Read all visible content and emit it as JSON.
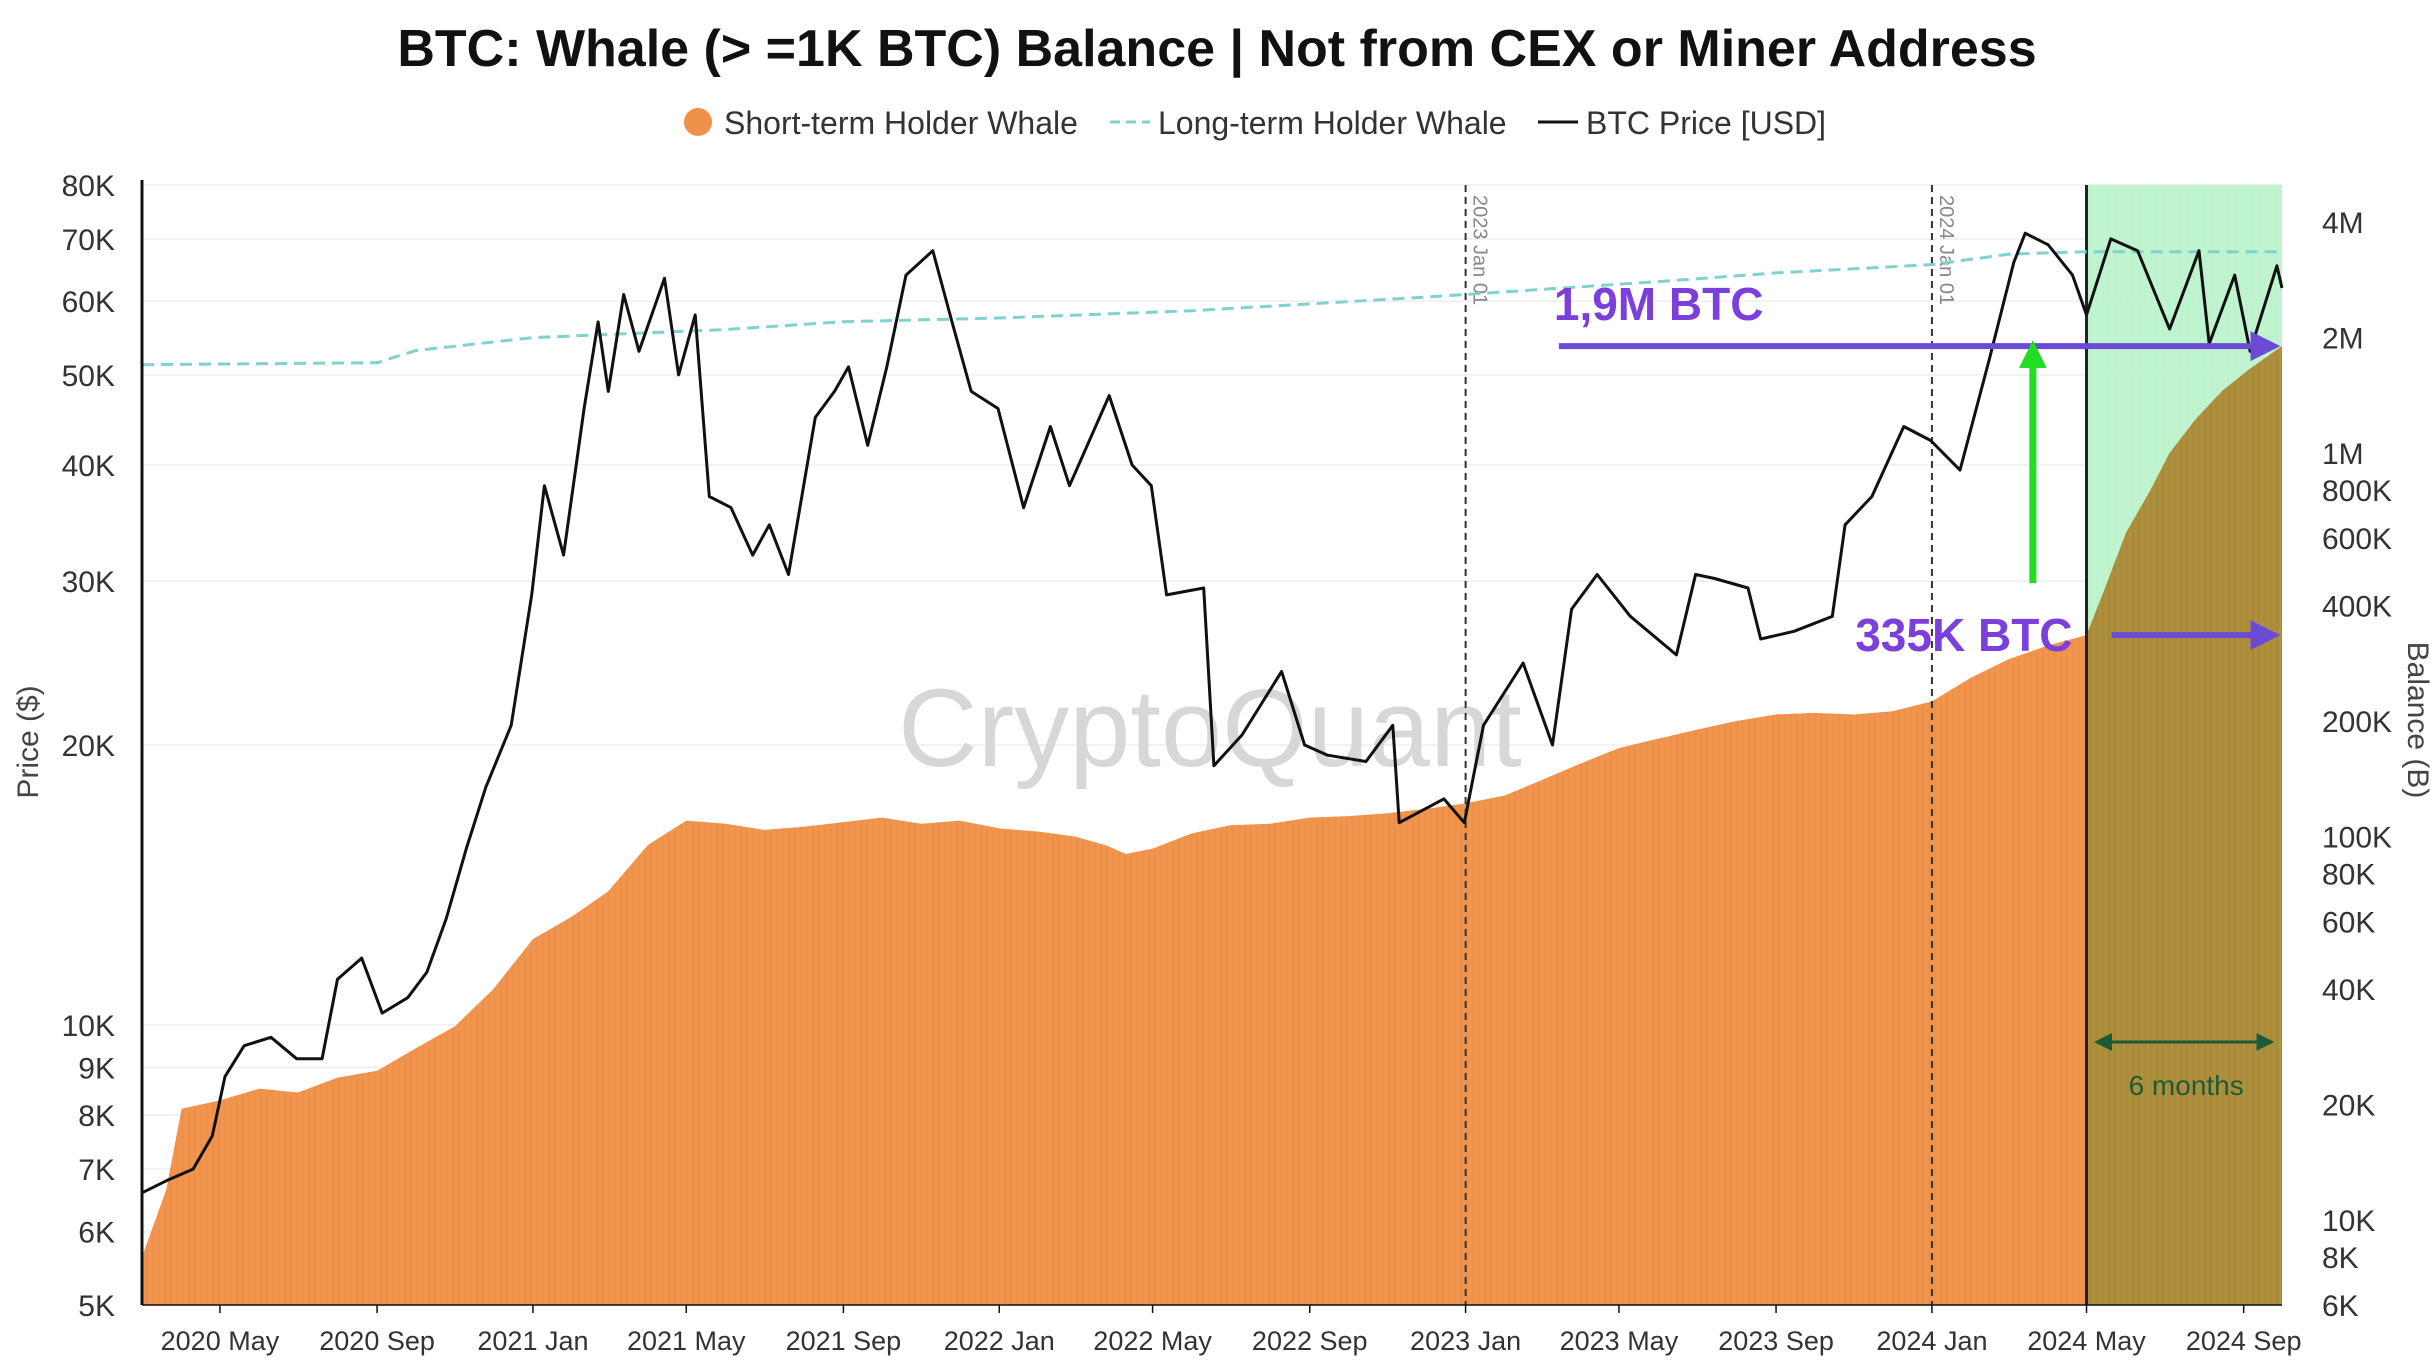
{
  "chart_data": {
    "type": "line",
    "title": "BTC: Whale (> =1K BTC) Balance | Not from CEX or Miner Address",
    "watermark": "CryptoQuant",
    "legend": [
      {
        "label": "Short-term Holder Whale",
        "style": "filled circle",
        "color": "#f0914a"
      },
      {
        "label": "Long-term Holder Whale",
        "style": "dashed",
        "color": "#7fd3cc"
      },
      {
        "label": "BTC Price [USD]",
        "style": "solid",
        "color": "#111111"
      }
    ],
    "ylabel_left": "Price ($)",
    "ylabel_right": "Balance (B)",
    "y_left_scale": "log",
    "y_left_range": [
      5000,
      80000
    ],
    "y_left_ticks": [
      {
        "label": "80K",
        "value": 80000
      },
      {
        "label": "70K",
        "value": 70000
      },
      {
        "label": "60K",
        "value": 60000
      },
      {
        "label": "50K",
        "value": 50000
      },
      {
        "label": "40K",
        "value": 40000
      },
      {
        "label": "30K",
        "value": 30000
      },
      {
        "label": "20K",
        "value": 20000
      },
      {
        "label": "10K",
        "value": 10000
      },
      {
        "label": "9K",
        "value": 9000
      },
      {
        "label": "8K",
        "value": 8000
      },
      {
        "label": "7K",
        "value": 7000
      },
      {
        "label": "6K",
        "value": 6000
      },
      {
        "label": "5K",
        "value": 5000
      }
    ],
    "y_right_scale": "log",
    "y_right_range": [
      6000,
      5000000
    ],
    "y_right_ticks": [
      {
        "label": "4M",
        "value": 4000000
      },
      {
        "label": "2M",
        "value": 2000000
      },
      {
        "label": "1M",
        "value": 1000000
      },
      {
        "label": "800K",
        "value": 800000
      },
      {
        "label": "600K",
        "value": 600000
      },
      {
        "label": "400K",
        "value": 400000
      },
      {
        "label": "200K",
        "value": 200000
      },
      {
        "label": "100K",
        "value": 100000
      },
      {
        "label": "80K",
        "value": 80000
      },
      {
        "label": "60K",
        "value": 60000
      },
      {
        "label": "40K",
        "value": 40000
      },
      {
        "label": "20K",
        "value": 20000
      },
      {
        "label": "10K",
        "value": 10000
      },
      {
        "label": "8K",
        "value": 8000
      },
      {
        "label": "6K",
        "value": 6000
      }
    ],
    "x_range": [
      "2020-03-01",
      "2024-10-01"
    ],
    "x_ticks": [
      {
        "label": "2020 May",
        "date": "2020-05-01"
      },
      {
        "label": "2020 Sep",
        "date": "2020-09-01"
      },
      {
        "label": "2021 Jan",
        "date": "2021-01-01"
      },
      {
        "label": "2021 May",
        "date": "2021-05-01"
      },
      {
        "label": "2021 Sep",
        "date": "2021-09-01"
      },
      {
        "label": "2022 Jan",
        "date": "2022-01-01"
      },
      {
        "label": "2022 May",
        "date": "2022-05-01"
      },
      {
        "label": "2022 Sep",
        "date": "2022-09-01"
      },
      {
        "label": "2023 Jan",
        "date": "2023-01-01"
      },
      {
        "label": "2023 May",
        "date": "2023-05-01"
      },
      {
        "label": "2023 Sep",
        "date": "2023-09-01"
      },
      {
        "label": "2024 Jan",
        "date": "2024-01-01"
      },
      {
        "label": "2024 May",
        "date": "2024-05-01"
      },
      {
        "label": "2024 Sep",
        "date": "2024-09-01"
      }
    ],
    "series": [
      {
        "name": "BTC Price [USD]",
        "axis": "left",
        "style": "line",
        "color": "#111111",
        "points": [
          [
            "2020-03-01",
            6600
          ],
          [
            "2020-03-20",
            6800
          ],
          [
            "2020-04-10",
            7000
          ],
          [
            "2020-04-25",
            7600
          ],
          [
            "2020-05-05",
            8800
          ],
          [
            "2020-05-20",
            9500
          ],
          [
            "2020-06-10",
            9700
          ],
          [
            "2020-06-30",
            9200
          ],
          [
            "2020-07-20",
            9200
          ],
          [
            "2020-08-01",
            11200
          ],
          [
            "2020-08-20",
            11800
          ],
          [
            "2020-09-05",
            10300
          ],
          [
            "2020-09-25",
            10700
          ],
          [
            "2020-10-10",
            11400
          ],
          [
            "2020-10-25",
            13000
          ],
          [
            "2020-11-10",
            15500
          ],
          [
            "2020-11-25",
            18000
          ],
          [
            "2020-12-15",
            21000
          ],
          [
            "2020-12-31",
            29000
          ],
          [
            "2021-01-10",
            38000
          ],
          [
            "2021-01-25",
            32000
          ],
          [
            "2021-02-10",
            46000
          ],
          [
            "2021-02-21",
            57000
          ],
          [
            "2021-03-01",
            48000
          ],
          [
            "2021-03-13",
            61000
          ],
          [
            "2021-03-25",
            53000
          ],
          [
            "2021-04-14",
            63500
          ],
          [
            "2021-04-25",
            50000
          ],
          [
            "2021-05-08",
            58000
          ],
          [
            "2021-05-19",
            37000
          ],
          [
            "2021-06-05",
            36000
          ],
          [
            "2021-06-22",
            32000
          ],
          [
            "2021-07-05",
            34500
          ],
          [
            "2021-07-20",
            30500
          ],
          [
            "2021-08-10",
            45000
          ],
          [
            "2021-08-25",
            48000
          ],
          [
            "2021-09-05",
            51000
          ],
          [
            "2021-09-20",
            42000
          ],
          [
            "2021-10-05",
            51000
          ],
          [
            "2021-10-20",
            64000
          ],
          [
            "2021-11-10",
            68000
          ],
          [
            "2021-11-25",
            57000
          ],
          [
            "2021-12-10",
            48000
          ],
          [
            "2021-12-31",
            46000
          ],
          [
            "2022-01-20",
            36000
          ],
          [
            "2022-02-10",
            44000
          ],
          [
            "2022-02-25",
            38000
          ],
          [
            "2022-03-28",
            47500
          ],
          [
            "2022-04-15",
            40000
          ],
          [
            "2022-04-30",
            38000
          ],
          [
            "2022-05-12",
            29000
          ],
          [
            "2022-06-10",
            29500
          ],
          [
            "2022-06-18",
            19000
          ],
          [
            "2022-07-10",
            20500
          ],
          [
            "2022-08-10",
            24000
          ],
          [
            "2022-08-28",
            20000
          ],
          [
            "2022-09-15",
            19500
          ],
          [
            "2022-10-15",
            19200
          ],
          [
            "2022-11-05",
            21000
          ],
          [
            "2022-11-10",
            16500
          ],
          [
            "2022-12-15",
            17500
          ],
          [
            "2022-12-31",
            16500
          ],
          [
            "2023-01-15",
            21000
          ],
          [
            "2023-02-15",
            24500
          ],
          [
            "2023-03-10",
            20000
          ],
          [
            "2023-03-25",
            28000
          ],
          [
            "2023-04-14",
            30500
          ],
          [
            "2023-05-10",
            27500
          ],
          [
            "2023-06-15",
            25000
          ],
          [
            "2023-06-30",
            30500
          ],
          [
            "2023-07-15",
            30200
          ],
          [
            "2023-08-10",
            29500
          ],
          [
            "2023-08-20",
            26000
          ],
          [
            "2023-09-15",
            26500
          ],
          [
            "2023-10-15",
            27500
          ],
          [
            "2023-10-25",
            34500
          ],
          [
            "2023-11-15",
            37000
          ],
          [
            "2023-12-10",
            44000
          ],
          [
            "2023-12-31",
            42500
          ],
          [
            "2024-01-23",
            39500
          ],
          [
            "2024-02-15",
            52000
          ],
          [
            "2024-03-05",
            66000
          ],
          [
            "2024-03-14",
            71000
          ],
          [
            "2024-04-01",
            69000
          ],
          [
            "2024-04-20",
            64000
          ],
          [
            "2024-05-01",
            58000
          ],
          [
            "2024-05-20",
            70000
          ],
          [
            "2024-06-10",
            68000
          ],
          [
            "2024-07-05",
            56000
          ],
          [
            "2024-07-28",
            68000
          ],
          [
            "2024-08-05",
            54000
          ],
          [
            "2024-08-25",
            64000
          ],
          [
            "2024-09-06",
            53000
          ],
          [
            "2024-09-27",
            65500
          ],
          [
            "2024-10-01",
            62000
          ]
        ]
      },
      {
        "name": "Long-term Holder Whale",
        "axis": "right",
        "style": "dashed",
        "color": "#7fd3cc",
        "points": [
          [
            "2020-03-01",
            1700000
          ],
          [
            "2020-09-01",
            1720000
          ],
          [
            "2020-10-01",
            1850000
          ],
          [
            "2021-01-01",
            2000000
          ],
          [
            "2021-06-01",
            2100000
          ],
          [
            "2021-09-01",
            2200000
          ],
          [
            "2022-01-01",
            2250000
          ],
          [
            "2022-06-01",
            2350000
          ],
          [
            "2022-12-01",
            2550000
          ],
          [
            "2023-06-01",
            2800000
          ],
          [
            "2023-09-01",
            2950000
          ],
          [
            "2024-01-01",
            3100000
          ],
          [
            "2024-03-01",
            3300000
          ],
          [
            "2024-05-01",
            3350000
          ],
          [
            "2024-10-01",
            3350000
          ]
        ]
      },
      {
        "name": "Short-term Holder Whale",
        "axis": "right",
        "style": "bar",
        "color": "#f0914a",
        "points": [
          [
            "2020-03-01",
            8000
          ],
          [
            "2020-03-20",
            12000
          ],
          [
            "2020-04-01",
            19500
          ],
          [
            "2020-05-01",
            20500
          ],
          [
            "2020-06-01",
            22000
          ],
          [
            "2020-07-01",
            21500
          ],
          [
            "2020-08-01",
            23500
          ],
          [
            "2020-09-01",
            24500
          ],
          [
            "2020-10-01",
            28000
          ],
          [
            "2020-11-01",
            32000
          ],
          [
            "2020-12-01",
            40000
          ],
          [
            "2021-01-01",
            54000
          ],
          [
            "2021-02-01",
            62000
          ],
          [
            "2021-03-01",
            72000
          ],
          [
            "2021-04-01",
            95000
          ],
          [
            "2021-05-01",
            110000
          ],
          [
            "2021-06-01",
            108000
          ],
          [
            "2021-07-01",
            104000
          ],
          [
            "2021-08-01",
            106000
          ],
          [
            "2021-09-01",
            109000
          ],
          [
            "2021-10-01",
            112000
          ],
          [
            "2021-11-01",
            108000
          ],
          [
            "2021-12-01",
            110000
          ],
          [
            "2022-01-01",
            105000
          ],
          [
            "2022-02-01",
            103000
          ],
          [
            "2022-03-01",
            100000
          ],
          [
            "2022-03-25",
            95000
          ],
          [
            "2022-04-10",
            90000
          ],
          [
            "2022-05-01",
            93000
          ],
          [
            "2022-06-01",
            102000
          ],
          [
            "2022-07-01",
            107000
          ],
          [
            "2022-08-01",
            108000
          ],
          [
            "2022-09-01",
            112000
          ],
          [
            "2022-10-01",
            113000
          ],
          [
            "2022-11-01",
            115000
          ],
          [
            "2022-12-01",
            118000
          ],
          [
            "2023-01-01",
            122000
          ],
          [
            "2023-02-01",
            128000
          ],
          [
            "2023-03-01",
            140000
          ],
          [
            "2023-04-01",
            155000
          ],
          [
            "2023-05-01",
            170000
          ],
          [
            "2023-06-01",
            180000
          ],
          [
            "2023-07-01",
            190000
          ],
          [
            "2023-08-01",
            200000
          ],
          [
            "2023-09-01",
            208000
          ],
          [
            "2023-10-01",
            210000
          ],
          [
            "2023-11-01",
            208000
          ],
          [
            "2023-12-01",
            212000
          ],
          [
            "2024-01-01",
            225000
          ],
          [
            "2024-02-01",
            260000
          ],
          [
            "2024-03-01",
            290000
          ],
          [
            "2024-04-01",
            315000
          ],
          [
            "2024-05-01",
            335000
          ],
          [
            "2024-05-15",
            440000
          ],
          [
            "2024-06-01",
            620000
          ],
          [
            "2024-06-20",
            800000
          ],
          [
            "2024-07-05",
            1000000
          ],
          [
            "2024-07-25",
            1220000
          ],
          [
            "2024-08-15",
            1450000
          ],
          [
            "2024-09-05",
            1650000
          ],
          [
            "2024-10-01",
            1900000
          ]
        ]
      }
    ],
    "highlight_region": {
      "from": "2024-05-01",
      "to": "2024-10-01",
      "color": "#b3f2c4"
    },
    "vertical_markers": [
      {
        "date": "2023-01-01",
        "label": "2023 Jan 01"
      },
      {
        "date": "2024-01-01",
        "label": "2024 Jan 01"
      }
    ],
    "annotations": [
      {
        "text": "1,9M BTC",
        "color": "#7b3fdc",
        "arrow_from": "2023-03-15",
        "arrow_to": "2024-09-25",
        "axis": "right",
        "value": 1900000
      },
      {
        "text": "335K BTC",
        "color": "#7b3fdc",
        "arrow_from": "2024-05-05",
        "arrow_to": "2024-09-25",
        "axis": "right",
        "value": 335000
      },
      {
        "text": "6 months",
        "color": "#1e5a38",
        "from": "2024-05-05",
        "to": "2024-09-30"
      }
    ],
    "green_arrow": {
      "color": "#22dd22",
      "date": "2024-03-20",
      "from_value": 335000,
      "to_value": 1900000
    }
  }
}
